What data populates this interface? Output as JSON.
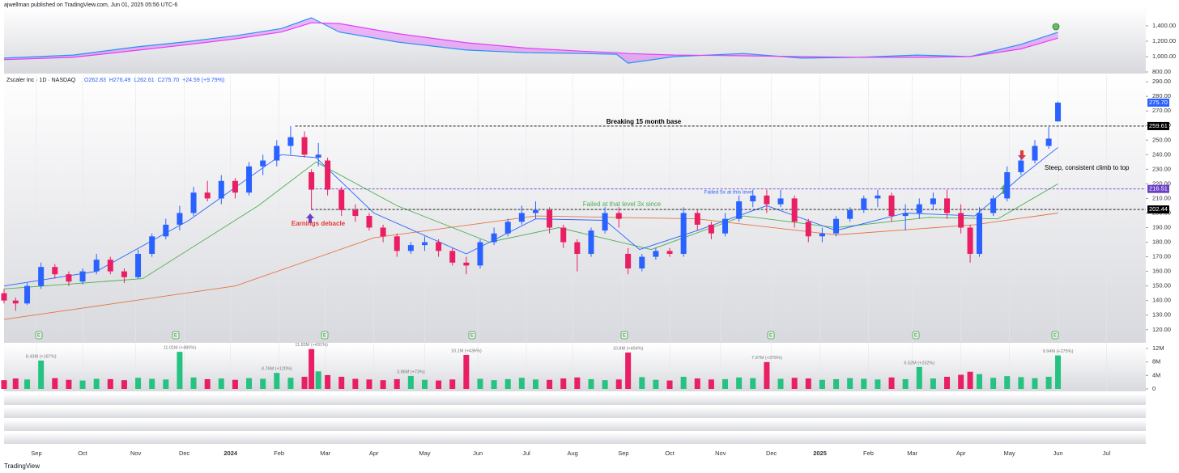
{
  "header": "ajwellman published on TradingView.com, Jun 01, 2025 05:56 UTC-6",
  "footer": "TradingView",
  "earnings_icon": "E",
  "chart_data": [
    {
      "type": "line",
      "name_label": null,
      "x": [
        0,
        30,
        57,
        78,
        100,
        120,
        133,
        145,
        170,
        200,
        226,
        250,
        265,
        270,
        290,
        320,
        345,
        370,
        395,
        418,
        440,
        456
      ],
      "series": [
        {
          "color": "#2196f3",
          "values": [
            980,
            1020,
            1125,
            1190,
            1270,
            1365,
            1505,
            1320,
            1190,
            1085,
            1050,
            1040,
            1030,
            915,
            1000,
            1040,
            980,
            990,
            1020,
            1000,
            1160,
            1316
          ]
        },
        {
          "color": "#e040fb",
          "values": [
            960,
            990,
            1080,
            1150,
            1230,
            1320,
            1440,
            1430,
            1300,
            1180,
            1110,
            1070,
            1050,
            1040,
            1020,
            1010,
            1000,
            990,
            990,
            1000,
            1100,
            1240
          ]
        }
      ],
      "fill": "#e040fb",
      "xlim": [
        0,
        494
      ],
      "ylim": [
        779,
        1652
      ],
      "yticks": [
        {
          "value": 1400,
          "label": "1,400.00"
        },
        {
          "value": 1200,
          "label": "1,200.00"
        },
        {
          "value": 1000,
          "label": "1,000.00"
        },
        {
          "value": 800,
          "label": "800.00"
        }
      ]
    },
    {
      "type": "candlestick",
      "title": "Zscaler Inc · 1D · NASDAQ",
      "ohlc_labels": [
        "O262.83",
        "H276.49",
        "L262.61",
        "C275.70",
        "+24.59 (+9.79%)"
      ],
      "up_color": "#2962ff",
      "down_color": "#e91e63",
      "x": [
        0,
        5,
        10,
        16,
        22,
        28,
        34,
        40,
        46,
        52,
        58,
        64,
        70,
        76,
        82,
        88,
        94,
        100,
        106,
        112,
        118,
        124,
        130,
        133,
        136,
        140,
        146,
        152,
        158,
        164,
        170,
        176,
        182,
        188,
        194,
        200,
        206,
        212,
        218,
        224,
        230,
        236,
        242,
        248,
        254,
        260,
        266,
        270,
        276,
        282,
        288,
        294,
        300,
        306,
        312,
        318,
        324,
        330,
        336,
        342,
        348,
        354,
        360,
        366,
        372,
        378,
        384,
        390,
        396,
        402,
        408,
        414,
        418,
        422,
        428,
        434,
        440,
        446,
        452,
        456
      ],
      "open": [
        145,
        140,
        138,
        150,
        163,
        158,
        153,
        160,
        168,
        160,
        156,
        172,
        184,
        192,
        200,
        214,
        210,
        222,
        214,
        232,
        236,
        246,
        252,
        228,
        238,
        236,
        216,
        202,
        198,
        190,
        184,
        174,
        178,
        180,
        174,
        166,
        164,
        180,
        186,
        194,
        200,
        202,
        190,
        180,
        172,
        188,
        200,
        172,
        162,
        170,
        174,
        172,
        200,
        192,
        186,
        196,
        208,
        212,
        206,
        210,
        194,
        184,
        186,
        196,
        202,
        210,
        212,
        198,
        200,
        206,
        210,
        200,
        190,
        172,
        200,
        210,
        228,
        236,
        246,
        262.83
      ],
      "high": [
        148,
        142,
        152,
        166,
        165,
        160,
        162,
        172,
        170,
        162,
        175,
        186,
        196,
        205,
        218,
        222,
        226,
        224,
        235,
        240,
        250,
        259.61,
        256,
        230,
        248,
        238,
        218,
        206,
        200,
        192,
        186,
        180,
        184,
        182,
        176,
        170,
        182,
        190,
        196,
        205,
        208,
        204,
        192,
        182,
        190,
        204,
        204,
        176,
        172,
        176,
        176,
        204,
        202,
        194,
        200,
        212,
        216,
        216,
        216,
        212,
        196,
        190,
        198,
        204,
        212,
        216,
        214,
        206,
        210,
        214,
        216,
        206,
        192,
        204,
        212,
        232,
        240,
        250,
        259,
        276.49
      ],
      "low": [
        138,
        133,
        137,
        148,
        155,
        150,
        151,
        158,
        158,
        152,
        155,
        170,
        182,
        188,
        198,
        208,
        206,
        210,
        212,
        226,
        232,
        240,
        238,
        202,
        232,
        212,
        198,
        194,
        188,
        180,
        170,
        172,
        174,
        170,
        164,
        158,
        162,
        178,
        184,
        192,
        196,
        186,
        176,
        160,
        170,
        186,
        190,
        158,
        160,
        168,
        170,
        170,
        188,
        182,
        184,
        194,
        204,
        200,
        204,
        190,
        180,
        180,
        184,
        194,
        200,
        204,
        194,
        188,
        196,
        202,
        196,
        186,
        166,
        170,
        198,
        208,
        226,
        234,
        244,
        262.61
      ],
      "close": [
        140,
        138,
        150,
        163,
        158,
        153,
        160,
        168,
        160,
        156,
        172,
        184,
        192,
        200,
        214,
        210,
        222,
        214,
        232,
        236,
        246,
        252,
        240,
        216,
        240,
        216,
        202,
        198,
        190,
        184,
        174,
        178,
        180,
        174,
        166,
        164,
        180,
        186,
        194,
        200,
        202,
        190,
        180,
        172,
        188,
        200,
        196,
        162,
        170,
        174,
        172,
        200,
        192,
        186,
        196,
        208,
        212,
        206,
        210,
        194,
        184,
        186,
        196,
        202,
        210,
        212,
        198,
        200,
        206,
        210,
        200,
        190,
        172,
        200,
        210,
        228,
        236,
        246,
        251,
        275.7
      ],
      "overlays": [
        {
          "color": "#e57342",
          "x": [
            0,
            100,
            160,
            230,
            300,
            360,
            420,
            456
          ],
          "values": [
            127,
            150,
            183,
            198,
            196,
            185,
            192,
            200
          ]
        },
        {
          "color": "#4caf50",
          "x": [
            0,
            60,
            110,
            135,
            170,
            210,
            240,
            280,
            320,
            360,
            400,
            430,
            456
          ],
          "values": [
            148,
            155,
            205,
            235,
            205,
            180,
            190,
            175,
            198,
            190,
            197,
            196,
            220
          ]
        },
        {
          "color": "#2962ff",
          "x": [
            0,
            40,
            80,
            120,
            135,
            160,
            200,
            230,
            260,
            275,
            300,
            330,
            360,
            390,
            420,
            440,
            456
          ],
          "values": [
            150,
            160,
            195,
            240,
            238,
            200,
            172,
            196,
            195,
            175,
            188,
            205,
            188,
            200,
            198,
            225,
            245
          ]
        }
      ],
      "levels": [
        {
          "value": 259.61,
          "label": "259.61",
          "from": 126,
          "color": "#000000",
          "badge": "#000000"
        },
        {
          "value": 216.51,
          "label": "216.51",
          "from": 133,
          "color": "#6a3fc7",
          "badge": "#6a3fc7"
        },
        {
          "value": 202.44,
          "label": "202.44",
          "from": 133,
          "color": "#000000",
          "badge": "#000000"
        }
      ],
      "last_price": {
        "value": 275.7,
        "label": "275.70",
        "badge": "#2962ff"
      },
      "annotations": [
        {
          "text": "Breaking 15 month base",
          "color": "#000000"
        },
        {
          "text": "Failed at that level 3x since",
          "color": "#4caf50"
        },
        {
          "text": "Earnings debacle",
          "color": "#e53935"
        },
        {
          "text": "Failed 5x at this level",
          "color": "#2962ff"
        },
        {
          "text": "Steep, consistent climb to top",
          "color": "#000000"
        }
      ],
      "xlim": [
        0,
        494
      ],
      "ylim": [
        111,
        294.5
      ],
      "yticks": [
        {
          "value": 290,
          "label": "290.00"
        },
        {
          "value": 280,
          "label": "280.00"
        },
        {
          "value": 270,
          "label": "270.00"
        },
        {
          "value": 260,
          "label": "260.00"
        },
        {
          "value": 250,
          "label": "250.00"
        },
        {
          "value": 240,
          "label": "240.00"
        },
        {
          "value": 230,
          "label": "230.00"
        },
        {
          "value": 220,
          "label": "220.00"
        },
        {
          "value": 210,
          "label": "210.00"
        },
        {
          "value": 200,
          "label": "200.00"
        },
        {
          "value": 190,
          "label": "190.00"
        },
        {
          "value": 180,
          "label": "180.00"
        },
        {
          "value": 170,
          "label": "170.00"
        },
        {
          "value": 160,
          "label": "160.00"
        },
        {
          "value": 150,
          "label": "150.00"
        },
        {
          "value": 140,
          "label": "140.00"
        },
        {
          "value": 130,
          "label": "130.00"
        },
        {
          "value": 120,
          "label": "120.00"
        }
      ],
      "xticks": [
        {
          "value": 14,
          "label": "Sep"
        },
        {
          "value": 34,
          "label": "Oct"
        },
        {
          "value": 57,
          "label": "Nov"
        },
        {
          "value": 78,
          "label": "Dec"
        },
        {
          "value": 98,
          "label": "2024"
        },
        {
          "value": 119,
          "label": "Feb"
        },
        {
          "value": 139,
          "label": "Mar"
        },
        {
          "value": 160,
          "label": "Apr"
        },
        {
          "value": 182,
          "label": "May"
        },
        {
          "value": 205,
          "label": "Jun"
        },
        {
          "value": 226,
          "label": "Jul"
        },
        {
          "value": 246,
          "label": "Aug"
        },
        {
          "value": 268,
          "label": "Sep"
        },
        {
          "value": 288,
          "label": "Oct"
        },
        {
          "value": 310,
          "label": "Nov"
        },
        {
          "value": 332,
          "label": "Dec"
        },
        {
          "value": 353,
          "label": "2025"
        },
        {
          "value": 374,
          "label": "Feb"
        },
        {
          "value": 393,
          "label": "Mar"
        },
        {
          "value": 414,
          "label": "Apr"
        },
        {
          "value": 435,
          "label": "May"
        },
        {
          "value": 456,
          "label": "Jun"
        },
        {
          "value": 477,
          "label": "Jul"
        }
      ]
    },
    {
      "type": "volume",
      "up_color": "#26c281",
      "down_color": "#e91e63",
      "values": [
        2.6,
        3.1,
        2.8,
        8.43,
        3.2,
        2.7,
        2.5,
        3.0,
        2.9,
        2.6,
        3.3,
        3.0,
        2.8,
        11.01,
        3.4,
        2.9,
        3.1,
        2.7,
        3.2,
        3.0,
        4.76,
        3.3,
        3.6,
        11.83,
        5.2,
        4.1,
        3.6,
        3.0,
        2.8,
        2.6,
        2.9,
        3.86,
        2.7,
        2.5,
        2.8,
        10.1,
        3.0,
        2.6,
        2.9,
        3.3,
        2.8,
        2.7,
        3.1,
        3.4,
        2.9,
        2.6,
        2.8,
        10.8,
        3.5,
        2.7,
        2.5,
        3.6,
        3.1,
        2.8,
        2.9,
        3.4,
        3.2,
        7.97,
        3.0,
        3.3,
        3.1,
        2.7,
        2.9,
        3.2,
        3.0,
        2.8,
        3.4,
        2.9,
        6.52,
        3.1,
        3.6,
        4.2,
        5.1,
        4.4,
        3.3,
        3.8,
        3.5,
        3.2,
        3.6,
        9.94
      ],
      "value_labels": [
        null,
        null,
        null,
        "8.43M (+187%)",
        null,
        null,
        null,
        null,
        null,
        null,
        null,
        null,
        null,
        "11.01M (+480%)",
        null,
        null,
        null,
        null,
        null,
        null,
        "4.76M (+120%)",
        null,
        null,
        "11.83M (+431%)",
        null,
        null,
        null,
        null,
        null,
        null,
        null,
        "3.86M (+73%)",
        null,
        null,
        null,
        "10.1M (+436%)",
        null,
        null,
        null,
        null,
        null,
        null,
        null,
        null,
        null,
        null,
        null,
        "10.8M (+494%)",
        null,
        null,
        null,
        null,
        null,
        null,
        null,
        null,
        null,
        "7.97M (+375%)",
        null,
        null,
        null,
        null,
        null,
        null,
        null,
        null,
        null,
        null,
        "6.52M (+232%)",
        null,
        null,
        null,
        null,
        null,
        null,
        null,
        null,
        null,
        null,
        "9.94M (+275%)"
      ],
      "xlim": [
        0,
        494
      ],
      "ylim": [
        -0.72,
        13.2
      ],
      "yticks": [
        {
          "value": 12,
          "label": "12M"
        },
        {
          "value": 8,
          "label": "8M"
        },
        {
          "value": 4,
          "label": "4M"
        },
        0
      ]
    }
  ]
}
